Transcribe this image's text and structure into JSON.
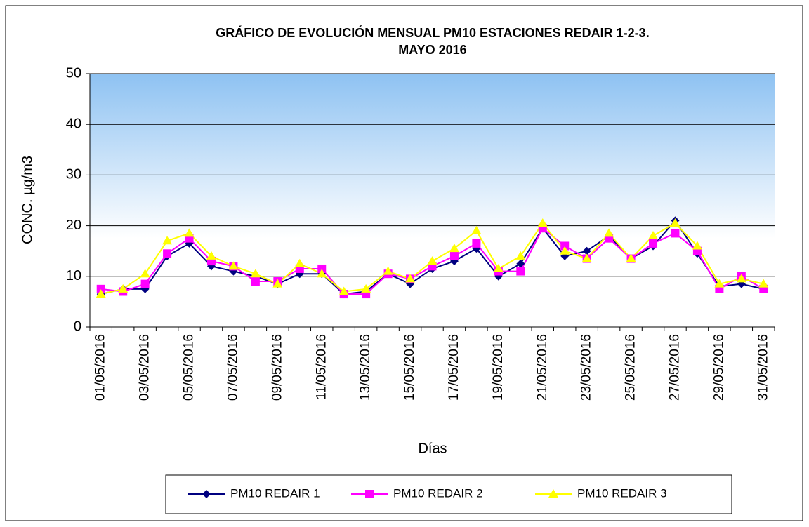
{
  "chart_data": {
    "type": "line",
    "title": "GRÁFICO DE EVOLUCIÓN MENSUAL PM10 ESTACIONES REDAIR 1-2-3.",
    "subtitle": "MAYO 2016",
    "x_label": "Días",
    "y_label": "CONC.  µg/m3",
    "categories": [
      "01/05/2016",
      null,
      "03/05/2016",
      null,
      "05/05/2016",
      null,
      "07/05/2016",
      null,
      "09/05/2016",
      null,
      "11/05/2016",
      null,
      "13/05/2016",
      null,
      "15/05/2016",
      null,
      "17/05/2016",
      null,
      "19/05/2016",
      null,
      "21/05/2016",
      null,
      "23/05/2016",
      null,
      "25/05/2016",
      null,
      "27/05/2016",
      null,
      "29/05/2016",
      null,
      "31/05/2016"
    ],
    "series": [
      {
        "name": "PM10 REDAIR 1",
        "color": "#000080",
        "marker": "diamond",
        "values": [
          6.5,
          7.5,
          7.5,
          14,
          16.5,
          12,
          11,
          10,
          8.5,
          10.5,
          10.5,
          6.5,
          7,
          10.5,
          8.5,
          11.5,
          13,
          15.5,
          10,
          12.5,
          19.5,
          14,
          15,
          18,
          13.5,
          16,
          21,
          14.5,
          8,
          8.5,
          7.5
        ]
      },
      {
        "name": "PM10 REDAIR 2",
        "color": "#ff00ff",
        "marker": "square",
        "values": [
          7.5,
          7,
          8.5,
          14.5,
          17.5,
          13,
          12,
          9,
          9,
          11.5,
          11.5,
          6.5,
          6.5,
          10.5,
          9.5,
          12,
          14,
          16.5,
          11,
          11,
          19.5,
          16,
          13.5,
          17.5,
          13.5,
          16.5,
          18.5,
          15,
          7.5,
          10,
          7.5
        ]
      },
      {
        "name": "PM10 REDAIR 3",
        "color": "#ffff00",
        "marker": "triangle",
        "values": [
          6.5,
          7.5,
          10.5,
          17,
          18.5,
          14,
          12,
          10.5,
          8.5,
          12.5,
          10.5,
          7,
          7.5,
          11,
          9.5,
          13,
          15.5,
          19,
          11.5,
          14,
          20.5,
          15,
          13.5,
          18.5,
          13.5,
          18,
          20.5,
          16,
          8.5,
          9.5,
          8.5
        ]
      }
    ],
    "ylim": [
      0,
      50
    ],
    "yticks": [
      0,
      10,
      20,
      30,
      40,
      50
    ],
    "grid": true,
    "legend": "bottom"
  }
}
